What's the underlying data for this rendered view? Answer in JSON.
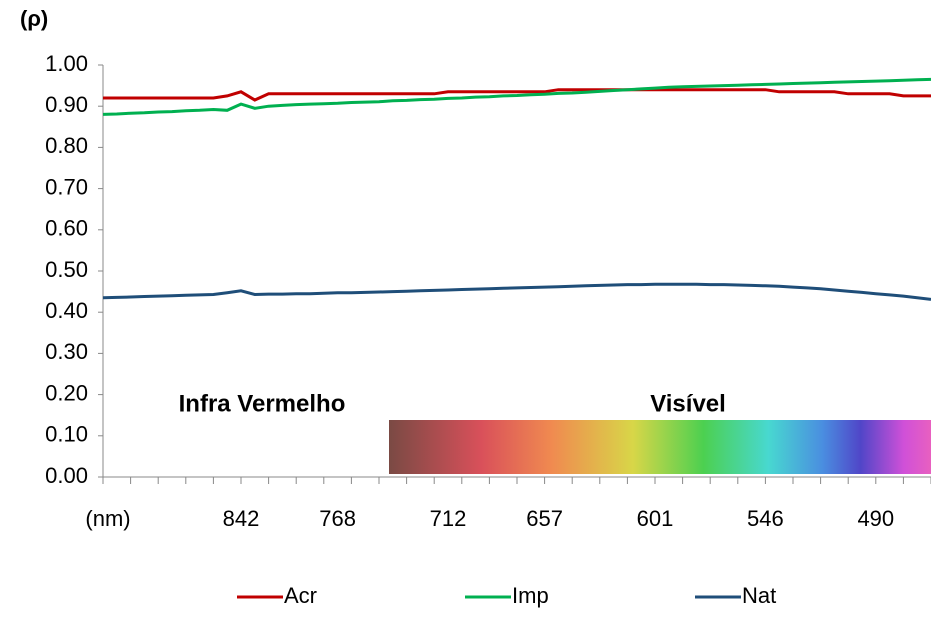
{
  "chart_data": {
    "type": "line",
    "ylabel": "(ρ)",
    "annotations": [
      "Infra Vermelho",
      "Visível"
    ],
    "categories": [
      "(nm)",
      null,
      null,
      null,
      null,
      null,
      null,
      null,
      null,
      null,
      "842",
      null,
      null,
      null,
      null,
      null,
      null,
      "768",
      null,
      null,
      null,
      null,
      null,
      null,
      null,
      "712",
      null,
      null,
      null,
      null,
      null,
      null,
      "657",
      null,
      null,
      null,
      null,
      null,
      null,
      null,
      "601",
      null,
      null,
      null,
      null,
      null,
      null,
      null,
      "546",
      null,
      null,
      null,
      null,
      null,
      null,
      null,
      "490",
      null,
      null,
      null,
      null
    ],
    "series": [
      {
        "name": "Acr",
        "color": "#c00000",
        "values": [
          0.92,
          0.92,
          0.92,
          0.92,
          0.92,
          0.92,
          0.92,
          0.92,
          0.92,
          0.925,
          0.935,
          0.915,
          0.93,
          0.93,
          0.93,
          0.93,
          0.93,
          0.93,
          0.93,
          0.93,
          0.93,
          0.93,
          0.93,
          0.93,
          0.93,
          0.935,
          0.935,
          0.935,
          0.935,
          0.935,
          0.935,
          0.935,
          0.935,
          0.94,
          0.94,
          0.94,
          0.94,
          0.94,
          0.94,
          0.94,
          0.94,
          0.94,
          0.94,
          0.94,
          0.94,
          0.94,
          0.94,
          0.94,
          0.94,
          0.935,
          0.935,
          0.935,
          0.935,
          0.935,
          0.93,
          0.93,
          0.93,
          0.93,
          0.925,
          0.925,
          0.925
        ]
      },
      {
        "name": "Imp",
        "color": "#00b050",
        "values": [
          0.88,
          0.881,
          0.883,
          0.884,
          0.886,
          0.887,
          0.889,
          0.89,
          0.892,
          0.89,
          0.905,
          0.895,
          0.9,
          0.902,
          0.904,
          0.905,
          0.906,
          0.907,
          0.909,
          0.91,
          0.911,
          0.913,
          0.914,
          0.916,
          0.917,
          0.919,
          0.92,
          0.922,
          0.923,
          0.925,
          0.926,
          0.928,
          0.929,
          0.931,
          0.932,
          0.934,
          0.936,
          0.938,
          0.94,
          0.942,
          0.944,
          0.946,
          0.947,
          0.948,
          0.949,
          0.95,
          0.951,
          0.952,
          0.953,
          0.954,
          0.955,
          0.956,
          0.957,
          0.958,
          0.959,
          0.96,
          0.961,
          0.962,
          0.963,
          0.964,
          0.965
        ]
      },
      {
        "name": "Nat",
        "color": "#1f4e79",
        "values": [
          0.435,
          0.436,
          0.437,
          0.438,
          0.439,
          0.44,
          0.441,
          0.442,
          0.443,
          0.447,
          0.452,
          0.443,
          0.444,
          0.444,
          0.445,
          0.445,
          0.446,
          0.447,
          0.447,
          0.448,
          0.449,
          0.45,
          0.451,
          0.452,
          0.453,
          0.454,
          0.455,
          0.456,
          0.457,
          0.458,
          0.459,
          0.46,
          0.461,
          0.462,
          0.463,
          0.464,
          0.465,
          0.466,
          0.467,
          0.467,
          0.468,
          0.468,
          0.468,
          0.468,
          0.467,
          0.467,
          0.466,
          0.465,
          0.464,
          0.463,
          0.461,
          0.459,
          0.457,
          0.454,
          0.451,
          0.448,
          0.445,
          0.442,
          0.439,
          0.435,
          0.431
        ]
      }
    ],
    "ylim": [
      0,
      1
    ],
    "yticks": [
      {
        "value": 0,
        "label": "0.00"
      },
      {
        "value": 0.1,
        "label": "0.10"
      },
      {
        "value": 0.2,
        "label": "0.20"
      },
      {
        "value": 0.3,
        "label": "0.30"
      },
      {
        "value": 0.4,
        "label": "0.40"
      },
      {
        "value": 0.5,
        "label": "0.50"
      },
      {
        "value": 0.6,
        "label": "0.60"
      },
      {
        "value": 0.7,
        "label": "0.70"
      },
      {
        "value": 0.8,
        "label": "0.80"
      },
      {
        "value": 0.9,
        "label": "0.90"
      },
      {
        "value": 1,
        "label": "1.00"
      }
    ],
    "grid": false,
    "legend": "bottom"
  }
}
